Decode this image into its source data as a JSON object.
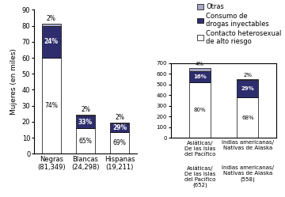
{
  "chart_data": [
    {
      "type": "bar",
      "stacked": true,
      "y_label": "Mujeres (en miles)",
      "categories": [
        "Negras\n(81,349)",
        "Blancas\n(24,298)",
        "Hispanas\n(19,211)"
      ],
      "series": [
        {
          "name": "Contacto heterosexual\nde alto riesgo",
          "color": "#ffffff",
          "values": [
            60.19826,
            15.7937,
            13.25559
          ],
          "share_labels": [
            "74%",
            "65%",
            "69%"
          ]
        },
        {
          "name": "Consumo de\ndrogas inyectables",
          "color": "#2e2e6e",
          "values": [
            19.52376,
            8.01834,
            5.57119
          ],
          "share_labels": [
            "24%",
            "33%",
            "29%"
          ]
        },
        {
          "name": "Otras",
          "color": "#a8a8c8",
          "values": [
            1.62698,
            0.48596,
            0.38422
          ],
          "share_labels": [
            "2%",
            "2%",
            "2%"
          ]
        }
      ],
      "ylim": [
        0,
        90
      ],
      "yticks": [
        0,
        10,
        20,
        30,
        40,
        50,
        60,
        70,
        80,
        90
      ],
      "legend": "upper right"
    },
    {
      "type": "bar",
      "stacked": true,
      "categories": [
        "Asiáticas/\nDe las islas\ndel Pacífico",
        "Indias americanas/\nNativas de Alaska"
      ],
      "series": [
        {
          "color": "#ffffff",
          "values": [
            521.6,
            379.44
          ],
          "share_labels": [
            "80%",
            "68%"
          ]
        },
        {
          "color": "#2e2e6e",
          "values": [
            104.32,
            161.82
          ],
          "share_labels": [
            "16%",
            "29%"
          ]
        },
        {
          "color": "#a8a8c8",
          "values": [
            26.08,
            11.16
          ],
          "share_labels": [
            "4%",
            "2%"
          ]
        }
      ],
      "ylim": [
        0,
        700
      ],
      "yticks": [
        0,
        100,
        200,
        300,
        400,
        500,
        600,
        700
      ],
      "annotations": [
        "Asiáticas/\nDe las islas\ndel Pacífico\n(652)",
        "Indias americanas/\nNativas de Alaska\n(558)"
      ]
    }
  ]
}
